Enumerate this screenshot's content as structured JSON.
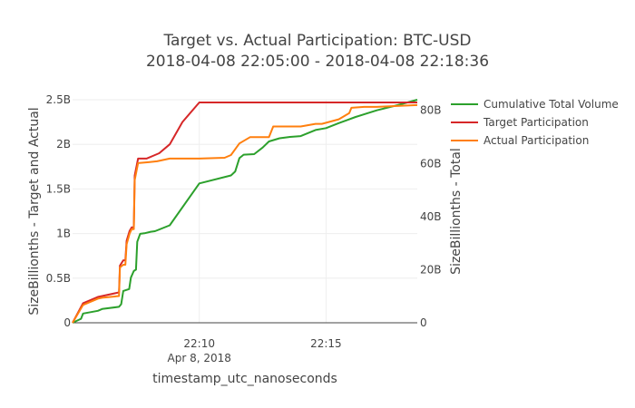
{
  "chart_data": {
    "type": "line",
    "title_lines": [
      "Target vs. Actual Participation: BTC-USD",
      "2018-04-08 22:05:00 - 2018-04-08 22:18:36"
    ],
    "xlabel": "timestamp_utc_nanoseconds",
    "ylabel_left": "SizeBillionths - Target and Actual",
    "ylabel_right": "SizeBillionths - Total",
    "x_range": [
      "2018-04-08 22:05:00",
      "2018-04-08 22:18:36"
    ],
    "x_ticks": [
      {
        "time": "2018-04-08 22:10:00",
        "label": "22:10",
        "sublabel": "Apr 8, 2018"
      },
      {
        "time": "2018-04-08 22:15:00",
        "label": "22:15",
        "sublabel": ""
      }
    ],
    "y_left": {
      "range": [
        0,
        2.5
      ],
      "ticks": [
        0,
        0.5,
        1,
        1.5,
        2,
        2.5
      ],
      "tick_labels": [
        "0",
        "0.5B",
        "1B",
        "1.5B",
        "2B",
        "2.5B"
      ]
    },
    "y_right": {
      "range": [
        0,
        84
      ],
      "ticks": [
        0,
        20,
        40,
        60,
        80
      ],
      "tick_labels": [
        "0",
        "20B",
        "40B",
        "60B",
        "80B"
      ]
    },
    "legend_position": "right",
    "series": [
      {
        "name": "Cumulative Total Volume",
        "axis": "right",
        "color": "#2ca02c",
        "points": [
          [
            "2018-04-08 22:05:00",
            0
          ],
          [
            "2018-04-08 22:05:20",
            1.5
          ],
          [
            "2018-04-08 22:05:25",
            3.5
          ],
          [
            "2018-04-08 22:06:00",
            4.5
          ],
          [
            "2018-04-08 22:06:10",
            5.2
          ],
          [
            "2018-04-08 22:06:50",
            6
          ],
          [
            "2018-04-08 22:06:55",
            7
          ],
          [
            "2018-04-08 22:07:00",
            12
          ],
          [
            "2018-04-08 22:07:14",
            12.7
          ],
          [
            "2018-04-08 22:07:18",
            17
          ],
          [
            "2018-04-08 22:07:25",
            19.5
          ],
          [
            "2018-04-08 22:07:30",
            20
          ],
          [
            "2018-04-08 22:07:33",
            30.5
          ],
          [
            "2018-04-08 22:07:40",
            33.5
          ],
          [
            "2018-04-08 22:07:50",
            33.7
          ],
          [
            "2018-04-08 22:08:05",
            34.3
          ],
          [
            "2018-04-08 22:08:15",
            34.5
          ],
          [
            "2018-04-08 22:08:50",
            36.7
          ],
          [
            "2018-04-08 22:10:00",
            52.5
          ],
          [
            "2018-04-08 22:11:15",
            55.5
          ],
          [
            "2018-04-08 22:11:25",
            57
          ],
          [
            "2018-04-08 22:11:35",
            62
          ],
          [
            "2018-04-08 22:11:45",
            63.3
          ],
          [
            "2018-04-08 22:12:10",
            63.5
          ],
          [
            "2018-04-08 22:12:30",
            66
          ],
          [
            "2018-04-08 22:12:45",
            68.3
          ],
          [
            "2018-04-08 22:13:10",
            69.5
          ],
          [
            "2018-04-08 22:13:35",
            70
          ],
          [
            "2018-04-08 22:14:00",
            70.3
          ],
          [
            "2018-04-08 22:14:35",
            72.6
          ],
          [
            "2018-04-08 22:15:00",
            73.3
          ],
          [
            "2018-04-08 22:15:30",
            75.2
          ],
          [
            "2018-04-08 22:16:10",
            77.5
          ],
          [
            "2018-04-08 22:17:00",
            80
          ],
          [
            "2018-04-08 22:17:50",
            82
          ],
          [
            "2018-04-08 22:18:36",
            84
          ]
        ]
      },
      {
        "name": "Target Participation",
        "axis": "left",
        "color": "#d62728",
        "points": [
          [
            "2018-04-08 22:05:00",
            0
          ],
          [
            "2018-04-08 22:05:25",
            0.22
          ],
          [
            "2018-04-08 22:06:00",
            0.29
          ],
          [
            "2018-04-08 22:06:10",
            0.3
          ],
          [
            "2018-04-08 22:06:50",
            0.34
          ],
          [
            "2018-04-08 22:06:52",
            0.64
          ],
          [
            "2018-04-08 22:07:00",
            0.7
          ],
          [
            "2018-04-08 22:07:05",
            0.7
          ],
          [
            "2018-04-08 22:07:08",
            0.92
          ],
          [
            "2018-04-08 22:07:15",
            1.03
          ],
          [
            "2018-04-08 22:07:20",
            1.07
          ],
          [
            "2018-04-08 22:07:25",
            1.07
          ],
          [
            "2018-04-08 22:07:27",
            1.65
          ],
          [
            "2018-04-08 22:07:35",
            1.84
          ],
          [
            "2018-04-08 22:07:55",
            1.84
          ],
          [
            "2018-04-08 22:08:15",
            1.88
          ],
          [
            "2018-04-08 22:08:25",
            1.9
          ],
          [
            "2018-04-08 22:08:50",
            2
          ],
          [
            "2018-04-08 22:09:20",
            2.25
          ],
          [
            "2018-04-08 22:10:00",
            2.47
          ],
          [
            "2018-04-08 22:18:36",
            2.47
          ]
        ]
      },
      {
        "name": "Actual Participation",
        "axis": "left",
        "color": "#ff7f0e",
        "points": [
          [
            "2018-04-08 22:05:00",
            0
          ],
          [
            "2018-04-08 22:05:25",
            0.2
          ],
          [
            "2018-04-08 22:06:00",
            0.27
          ],
          [
            "2018-04-08 22:06:10",
            0.28
          ],
          [
            "2018-04-08 22:06:50",
            0.3
          ],
          [
            "2018-04-08 22:06:52",
            0.62
          ],
          [
            "2018-04-08 22:07:00",
            0.65
          ],
          [
            "2018-04-08 22:07:05",
            0.65
          ],
          [
            "2018-04-08 22:07:08",
            0.88
          ],
          [
            "2018-04-08 22:07:15",
            1
          ],
          [
            "2018-04-08 22:07:20",
            1.05
          ],
          [
            "2018-04-08 22:07:25",
            1.05
          ],
          [
            "2018-04-08 22:07:27",
            1.6
          ],
          [
            "2018-04-08 22:07:35",
            1.79
          ],
          [
            "2018-04-08 22:08:00",
            1.8
          ],
          [
            "2018-04-08 22:08:20",
            1.81
          ],
          [
            "2018-04-08 22:08:50",
            1.84
          ],
          [
            "2018-04-08 22:10:00",
            1.84
          ],
          [
            "2018-04-08 22:11:00",
            1.85
          ],
          [
            "2018-04-08 22:11:15",
            1.88
          ],
          [
            "2018-04-08 22:11:35",
            2.01
          ],
          [
            "2018-04-08 22:12:00",
            2.08
          ],
          [
            "2018-04-08 22:12:45",
            2.08
          ],
          [
            "2018-04-08 22:12:55",
            2.2
          ],
          [
            "2018-04-08 22:14:00",
            2.2
          ],
          [
            "2018-04-08 22:14:35",
            2.23
          ],
          [
            "2018-04-08 22:14:50",
            2.23
          ],
          [
            "2018-04-08 22:15:30",
            2.28
          ],
          [
            "2018-04-08 22:15:55",
            2.35
          ],
          [
            "2018-04-08 22:16:00",
            2.41
          ],
          [
            "2018-04-08 22:16:30",
            2.42
          ],
          [
            "2018-04-08 22:17:00",
            2.42
          ],
          [
            "2018-04-08 22:18:36",
            2.44
          ]
        ]
      }
    ]
  }
}
